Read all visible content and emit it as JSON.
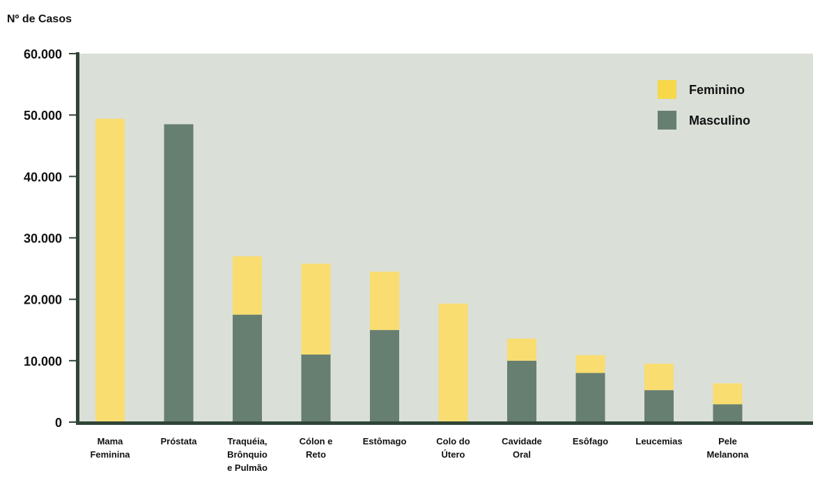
{
  "chart_data": {
    "type": "bar",
    "stacked": true,
    "ylabel": "Nº de Casos",
    "ylim": [
      0,
      60000
    ],
    "y_ticks": [
      "0",
      "10.000",
      "20.000",
      "30.000",
      "40.000",
      "50.000",
      "60.000"
    ],
    "y_tick_values": [
      0,
      10000,
      20000,
      30000,
      40000,
      50000,
      60000
    ],
    "categories": [
      [
        "Mama",
        "Feminina"
      ],
      [
        "Próstata"
      ],
      [
        "Traquéia,",
        "Brônquio",
        "e Pulmão"
      ],
      [
        "Cólon e",
        "Reto"
      ],
      [
        "Estômago"
      ],
      [
        "Colo do",
        "Útero"
      ],
      [
        "Cavidade",
        "Oral"
      ],
      [
        "Esôfago"
      ],
      [
        "Leucemias"
      ],
      [
        "Pele",
        "Melanona"
      ]
    ],
    "series": [
      {
        "name": "Masculino",
        "color": "#677f70",
        "values": [
          0,
          48500,
          17500,
          11000,
          15000,
          0,
          10000,
          8000,
          5200,
          2900
        ]
      },
      {
        "name": "Feminino",
        "color": "#f9dd70",
        "values": [
          49400,
          0,
          9500,
          14800,
          9500,
          19300,
          3600,
          2900,
          4300,
          3400
        ]
      }
    ],
    "legend_position": "top-right",
    "legend_items": [
      {
        "name": "Feminino",
        "color": "#f6d84a"
      },
      {
        "name": "Masculino",
        "color": "#677f70"
      }
    ],
    "plot_background": "#dadfd8",
    "axis_color": "#2f4436",
    "grid": false
  }
}
